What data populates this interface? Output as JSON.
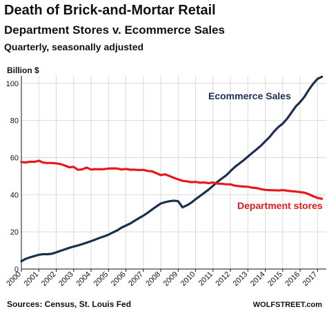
{
  "header": {
    "title": "Death of Brick-and-Mortar Retail",
    "subtitle": "Department Stores v. Ecommerce Sales",
    "note": "Quarterly, seasonally adjusted"
  },
  "footer": {
    "source": "Sources: Census, St. Louis Fed",
    "brand": "WOLFSTREET.com"
  },
  "chart_data": {
    "type": "line",
    "title": "Death of Brick-and-Mortar Retail",
    "ylabel": "Billion $",
    "xlabel": "",
    "ylim": [
      0,
      104
    ],
    "yticks": [
      0,
      20,
      40,
      60,
      80,
      100
    ],
    "xlim": [
      2000,
      2017.5
    ],
    "xticks": [
      "2000",
      "2001",
      "2002",
      "2003",
      "2004",
      "2005",
      "2006",
      "2007",
      "2008",
      "2009",
      "2010",
      "2011",
      "2012",
      "2013",
      "2014",
      "2015",
      "2016",
      "2017"
    ],
    "grid": true,
    "colors": {
      "ecommerce": "#1b2f4f",
      "department": "#e81818",
      "grid": "#d9d9d9"
    },
    "series": [
      {
        "name": "Ecommerce Sales",
        "x": [
          2000.0,
          2000.25,
          2000.5,
          2000.75,
          2001.0,
          2001.25,
          2001.5,
          2001.75,
          2002.0,
          2002.25,
          2002.5,
          2002.75,
          2003.0,
          2003.25,
          2003.5,
          2003.75,
          2004.0,
          2004.25,
          2004.5,
          2004.75,
          2005.0,
          2005.25,
          2005.5,
          2005.75,
          2006.0,
          2006.25,
          2006.5,
          2006.75,
          2007.0,
          2007.25,
          2007.5,
          2007.75,
          2008.0,
          2008.25,
          2008.5,
          2008.75,
          2009.0,
          2009.25,
          2009.5,
          2009.75,
          2010.0,
          2010.25,
          2010.5,
          2010.75,
          2011.0,
          2011.25,
          2011.5,
          2011.75,
          2012.0,
          2012.25,
          2012.5,
          2012.75,
          2013.0,
          2013.25,
          2013.5,
          2013.75,
          2014.0,
          2014.25,
          2014.5,
          2014.75,
          2015.0,
          2015.25,
          2015.5,
          2015.75,
          2016.0,
          2016.25,
          2016.5,
          2016.75,
          2017.0,
          2017.25
        ],
        "values": [
          4.2,
          5.5,
          6.3,
          7.0,
          7.7,
          8.0,
          8.0,
          8.2,
          9.0,
          9.8,
          10.6,
          11.4,
          12.1,
          12.7,
          13.4,
          14.2,
          15.0,
          15.9,
          16.8,
          17.6,
          18.5,
          19.7,
          20.8,
          22.3,
          23.4,
          24.5,
          26.0,
          27.4,
          28.7,
          30.3,
          32.0,
          33.7,
          35.3,
          36.0,
          36.5,
          36.8,
          36.5,
          33.2,
          34.3,
          35.7,
          37.6,
          39.3,
          41.0,
          42.8,
          44.8,
          46.9,
          48.7,
          50.4,
          52.7,
          54.9,
          56.7,
          58.5,
          60.5,
          62.5,
          64.4,
          66.4,
          68.8,
          71.1,
          74.0,
          76.4,
          78.3,
          80.9,
          84.2,
          87.5,
          89.9,
          92.7,
          96.5,
          99.8,
          102.4,
          103.5
        ]
      },
      {
        "name": "Department stores",
        "x": [
          2000.0,
          2000.25,
          2000.5,
          2000.75,
          2001.0,
          2001.25,
          2001.5,
          2001.75,
          2002.0,
          2002.25,
          2002.5,
          2002.75,
          2003.0,
          2003.25,
          2003.5,
          2003.75,
          2004.0,
          2004.25,
          2004.5,
          2004.75,
          2005.0,
          2005.25,
          2005.5,
          2005.75,
          2006.0,
          2006.25,
          2006.5,
          2006.75,
          2007.0,
          2007.25,
          2007.5,
          2007.75,
          2008.0,
          2008.25,
          2008.5,
          2008.75,
          2009.0,
          2009.25,
          2009.5,
          2009.75,
          2010.0,
          2010.25,
          2010.5,
          2010.75,
          2011.0,
          2011.25,
          2011.5,
          2011.75,
          2012.0,
          2012.25,
          2012.5,
          2012.75,
          2013.0,
          2013.25,
          2013.5,
          2013.75,
          2014.0,
          2014.25,
          2014.5,
          2014.75,
          2015.0,
          2015.25,
          2015.5,
          2015.75,
          2016.0,
          2016.25,
          2016.5,
          2016.75,
          2017.0,
          2017.25
        ],
        "values": [
          57.6,
          57.4,
          57.8,
          57.7,
          58.3,
          57.3,
          57.1,
          57.1,
          56.9,
          56.5,
          55.7,
          54.8,
          55.0,
          53.4,
          53.7,
          54.6,
          53.6,
          53.8,
          53.7,
          53.8,
          54.1,
          54.2,
          54.1,
          53.6,
          53.9,
          53.5,
          53.5,
          53.3,
          53.4,
          52.8,
          52.6,
          51.6,
          50.6,
          51.0,
          50.1,
          49.1,
          48.3,
          47.5,
          47.2,
          46.8,
          46.9,
          46.5,
          46.6,
          46.2,
          46.6,
          46.0,
          45.9,
          45.6,
          45.6,
          44.9,
          44.6,
          44.4,
          44.3,
          43.8,
          43.6,
          43.0,
          42.6,
          42.5,
          42.4,
          42.3,
          42.5,
          42.2,
          41.9,
          41.7,
          41.4,
          41.1,
          40.3,
          39.2,
          38.3,
          37.8
        ]
      }
    ],
    "labels": {
      "ecommerce": "Ecommerce Sales",
      "department": "Department stores"
    }
  }
}
